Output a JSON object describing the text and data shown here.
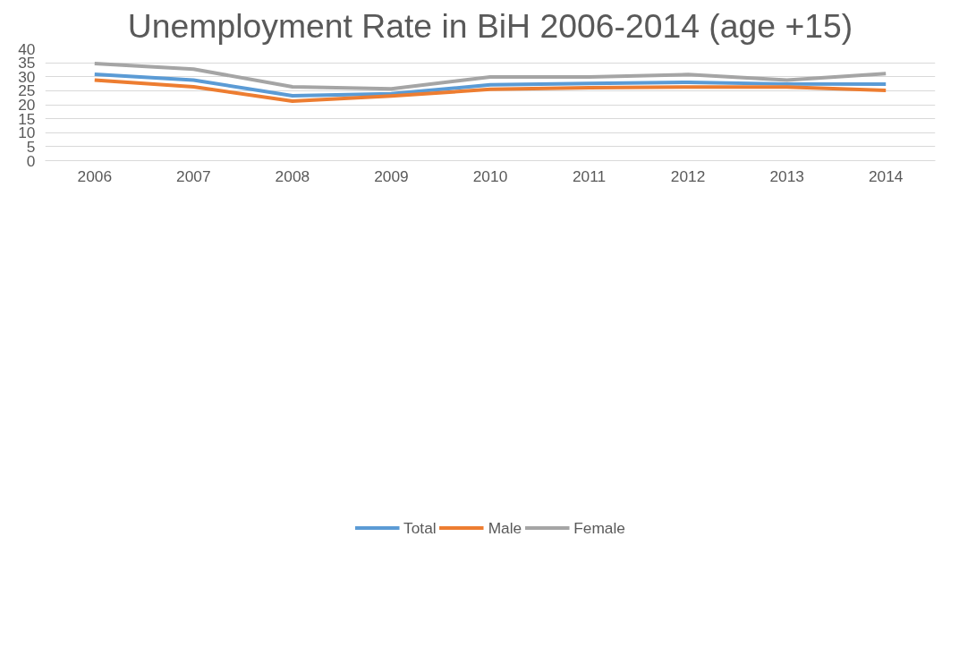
{
  "chart_data": {
    "type": "line",
    "title": "Unemployment Rate in BiH 2006-2014 (age +15)",
    "categories": [
      "2006",
      "2007",
      "2008",
      "2009",
      "2010",
      "2011",
      "2012",
      "2013",
      "2014"
    ],
    "series": [
      {
        "name": "Total",
        "color": "#5b9bd5",
        "values": [
          30.9,
          28.8,
          23.2,
          23.9,
          27.1,
          27.6,
          28.0,
          27.4,
          27.4
        ]
      },
      {
        "name": "Male",
        "color": "#ed7d31",
        "values": [
          28.8,
          26.4,
          21.3,
          23.1,
          25.5,
          26.1,
          26.3,
          26.3,
          25.1
        ]
      },
      {
        "name": "Female",
        "color": "#a5a5a5",
        "values": [
          34.7,
          32.7,
          26.4,
          25.7,
          29.9,
          29.9,
          30.8,
          28.8,
          31.1
        ]
      }
    ],
    "ylim": [
      0,
      40
    ],
    "yticks": [
      0,
      5,
      10,
      15,
      20,
      25,
      30,
      35,
      40
    ],
    "grid": "y",
    "legend": "bottom",
    "marker": "none",
    "line_style": "solid"
  }
}
